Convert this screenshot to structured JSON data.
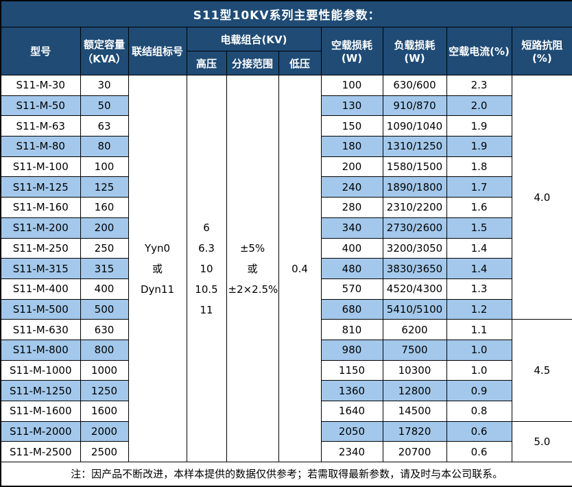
{
  "title": "S11型10KV系列主要性能参数：",
  "header": {
    "model": "型号",
    "capacity": "额定容量\n（KVA）",
    "connection": "联结组标号",
    "voltage_group": "电载组合(KV)",
    "high_voltage": "高压",
    "tap_range": "分接范围",
    "low_voltage": "低压",
    "no_load_loss": "空载损耗(W)",
    "load_loss": "负载损耗(W)",
    "no_load_current": "空载电流(%)",
    "impedance": "短路抗阻(%)"
  },
  "merged": {
    "connection": "Yyn0\n或\nDyn11",
    "high_voltage": "6\n6.3\n10\n10.5\n11",
    "tap_range": "±5%\n或\n±2×2.5%",
    "low_voltage": "0.4"
  },
  "impedance_groups": [
    {
      "value": "4.0",
      "rows": 12
    },
    {
      "value": "4.5",
      "rows": 5
    },
    {
      "value": "5.0",
      "rows": 2
    }
  ],
  "rows": [
    {
      "model": "S11-M-30",
      "capacity": "30",
      "no_load_loss": "100",
      "load_loss": "630/600",
      "no_load_current": "2.3"
    },
    {
      "model": "S11-M-50",
      "capacity": "50",
      "no_load_loss": "130",
      "load_loss": "910/870",
      "no_load_current": "2.0"
    },
    {
      "model": "S11-M-63",
      "capacity": "63",
      "no_load_loss": "150",
      "load_loss": "1090/1040",
      "no_load_current": "1.9"
    },
    {
      "model": "S11-M-80",
      "capacity": "80",
      "no_load_loss": "180",
      "load_loss": "1310/1250",
      "no_load_current": "1.9"
    },
    {
      "model": "S11-M-100",
      "capacity": "100",
      "no_load_loss": "200",
      "load_loss": "1580/1500",
      "no_load_current": "1.8"
    },
    {
      "model": "S11-M-125",
      "capacity": "125",
      "no_load_loss": "240",
      "load_loss": "1890/1800",
      "no_load_current": "1.7"
    },
    {
      "model": "S11-M-160",
      "capacity": "160",
      "no_load_loss": "280",
      "load_loss": "2310/2200",
      "no_load_current": "1.6"
    },
    {
      "model": "S11-M-200",
      "capacity": "200",
      "no_load_loss": "340",
      "load_loss": "2730/2600",
      "no_load_current": "1.5"
    },
    {
      "model": "S11-M-250",
      "capacity": "250",
      "no_load_loss": "400",
      "load_loss": "3200/3050",
      "no_load_current": "1.4"
    },
    {
      "model": "S11-M-315",
      "capacity": "315",
      "no_load_loss": "480",
      "load_loss": "3830/3650",
      "no_load_current": "1.4"
    },
    {
      "model": "S11-M-400",
      "capacity": "400",
      "no_load_loss": "570",
      "load_loss": "4520/4300",
      "no_load_current": "1.3"
    },
    {
      "model": "S11-M-500",
      "capacity": "500",
      "no_load_loss": "680",
      "load_loss": "5410/5100",
      "no_load_current": "1.2"
    },
    {
      "model": "S11-M-630",
      "capacity": "630",
      "no_load_loss": "810",
      "load_loss": "6200",
      "no_load_current": "1.1"
    },
    {
      "model": "S11-M-800",
      "capacity": "800",
      "no_load_loss": "980",
      "load_loss": "7500",
      "no_load_current": "1.0"
    },
    {
      "model": "S11-M-1000",
      "capacity": "1000",
      "no_load_loss": "1150",
      "load_loss": "10300",
      "no_load_current": "1.0"
    },
    {
      "model": "S11-M-1250",
      "capacity": "1250",
      "no_load_loss": "1360",
      "load_loss": "12800",
      "no_load_current": "0.9"
    },
    {
      "model": "S11-M-1600",
      "capacity": "1600",
      "no_load_loss": "1640",
      "load_loss": "14500",
      "no_load_current": "0.8"
    },
    {
      "model": "S11-M-2000",
      "capacity": "2000",
      "no_load_loss": "2050",
      "load_loss": "17820",
      "no_load_current": "0.6"
    },
    {
      "model": "S11-M-2500",
      "capacity": "2500",
      "no_load_loss": "2340",
      "load_loss": "20700",
      "no_load_current": "0.6"
    }
  ],
  "note": "注：因产品不断改进，本样本提供的数据仅供参考；若需取得最新参数，请及时与本公司联系。",
  "colors": {
    "header_bg": "#1F4B75",
    "header_text": "#FFFFFF",
    "stripe_bg": "#A3C8EB",
    "body_text": "#000000",
    "border": "#000000"
  }
}
